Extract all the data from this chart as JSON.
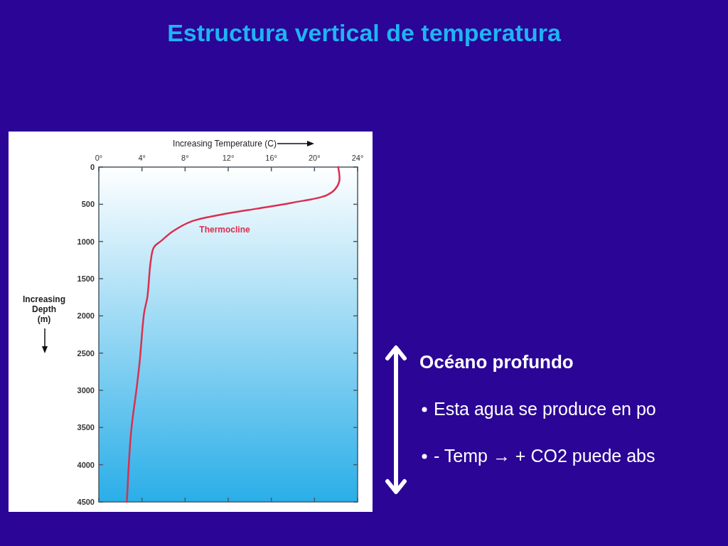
{
  "chart_data": {
    "type": "line",
    "title": "Estructura vertical de temperatura",
    "xlabel": "Increasing Temperature (C)",
    "ylabel": "Increasing Depth (m)",
    "xlim": [
      0,
      24
    ],
    "xticks": [
      {
        "value": 0,
        "label": "0°"
      },
      {
        "value": 4,
        "label": "4°"
      },
      {
        "value": 8,
        "label": "8°"
      },
      {
        "value": 12,
        "label": "12°"
      },
      {
        "value": 16,
        "label": "16°"
      },
      {
        "value": 20,
        "label": "20°"
      },
      {
        "value": 24,
        "label": "24°"
      }
    ],
    "ylim": [
      4500,
      0
    ],
    "yticks": [
      0,
      500,
      1000,
      1500,
      2000,
      2500,
      3000,
      3500,
      4000,
      4500
    ],
    "grid": false,
    "marker": "none",
    "line_style": "solid",
    "series": [
      {
        "color": "#d9304f",
        "x": [
          22.2,
          22.3,
          21.9,
          21.1,
          17.9,
          14.6,
          11.3,
          8.6,
          6.9,
          5.8,
          5.1,
          4.8,
          4.5,
          4.2,
          3.8,
          3.5,
          3.0,
          2.6
        ],
        "values": [
          0,
          190,
          300,
          380,
          480,
          560,
          640,
          730,
          860,
          990,
          1080,
          1280,
          1750,
          1960,
          2600,
          2980,
          3550,
          4500
        ]
      }
    ],
    "annotations": [
      "Thermocline",
      "Océano profundo",
      "Esta agua se produce en po",
      "- Temp → + CO2 puede abs"
    ]
  }
}
